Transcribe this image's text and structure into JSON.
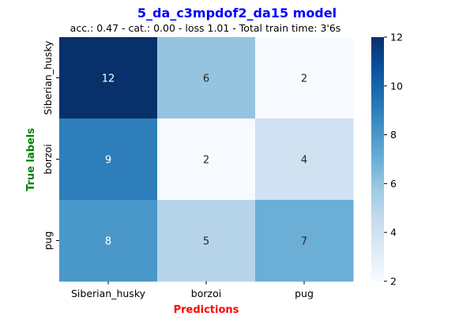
{
  "chart_data": {
    "type": "heatmap",
    "title": "5_da_c3mpdof2_da15 model",
    "subtitle": "acc.: 0.47 - cat.: 0.00 - loss 1.01 - Total train time: 3'6s",
    "xlabel": "Predictions",
    "ylabel": "True labels",
    "x_categories": [
      "Siberian_husky",
      "borzoi",
      "pug"
    ],
    "y_categories": [
      "Siberian_husky",
      "borzoi",
      "pug"
    ],
    "values": [
      [
        12,
        6,
        2
      ],
      [
        9,
        2,
        4
      ],
      [
        8,
        5,
        7
      ]
    ],
    "colorbar": {
      "min": 2,
      "max": 12,
      "ticks": [
        "2",
        "4",
        "6",
        "8",
        "10",
        "12"
      ]
    },
    "colormap": "Blues",
    "colors": {
      "title": "#0000ff",
      "xlabel": "#ff0000",
      "ylabel": "#008000"
    }
  }
}
